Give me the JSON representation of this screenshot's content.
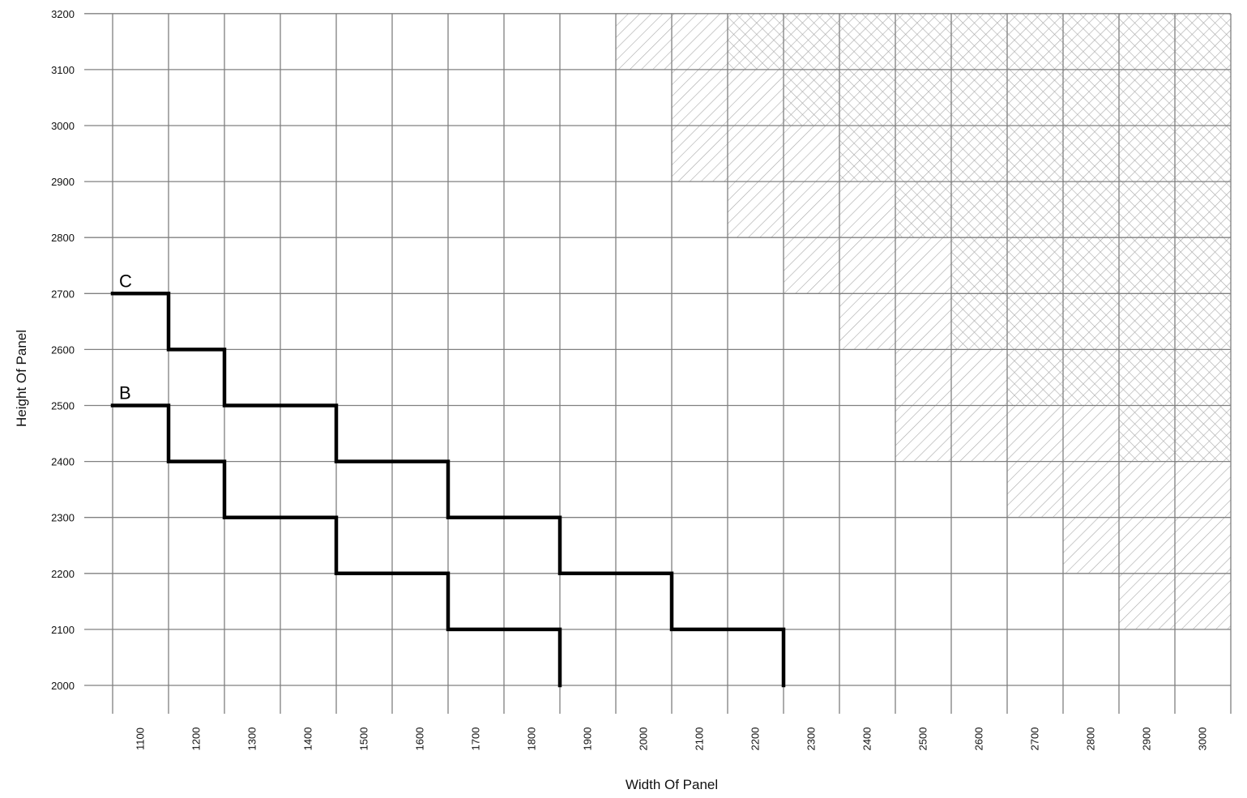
{
  "chart_data": {
    "type": "line",
    "title": "",
    "xlabel": "Width Of Panel",
    "ylabel": "Height Of Panel",
    "xlim": [
      1000,
      3000
    ],
    "ylim": [
      2000,
      3200
    ],
    "x_ticks": [
      1100,
      1200,
      1300,
      1400,
      1500,
      1600,
      1700,
      1800,
      1900,
      2000,
      2100,
      2200,
      2300,
      2400,
      2500,
      2600,
      2700,
      2800,
      2900,
      3000
    ],
    "y_ticks": [
      2000,
      2100,
      2200,
      2300,
      2400,
      2500,
      2600,
      2700,
      2800,
      2900,
      3000,
      3100,
      3200
    ],
    "grid": true,
    "series": [
      {
        "name": "C",
        "step": true,
        "x": [
          1000,
          1100,
          1100,
          1200,
          1200,
          1400,
          1400,
          1600,
          1600,
          1800,
          1800,
          2000,
          2000,
          2200,
          2200
        ],
        "y": [
          2700,
          2700,
          2600,
          2600,
          2500,
          2500,
          2400,
          2400,
          2300,
          2300,
          2200,
          2200,
          2100,
          2100,
          2000
        ]
      },
      {
        "name": "B",
        "step": true,
        "x": [
          1000,
          1100,
          1100,
          1200,
          1200,
          1400,
          1400,
          1600,
          1600,
          1800,
          1800
        ],
        "y": [
          2500,
          2500,
          2400,
          2400,
          2300,
          2300,
          2200,
          2200,
          2100,
          2100,
          2000
        ]
      }
    ],
    "hatched_regions": {
      "single_hatch": {
        "pattern": "diagonal",
        "color": "#a9a9a9",
        "columns": [
          {
            "x0": 1900,
            "x1": 2000,
            "y_min": 3100
          },
          {
            "x0": 2000,
            "x1": 2100,
            "y_min": 2900
          },
          {
            "x0": 2100,
            "x1": 2200,
            "y_min": 2800
          },
          {
            "x0": 2200,
            "x1": 2300,
            "y_min": 2700
          },
          {
            "x0": 2300,
            "x1": 2400,
            "y_min": 2600
          },
          {
            "x0": 2400,
            "x1": 2500,
            "y_min": 2400
          },
          {
            "x0": 2500,
            "x1": 2600,
            "y_min": 2400
          },
          {
            "x0": 2600,
            "x1": 2700,
            "y_min": 2300
          },
          {
            "x0": 2700,
            "x1": 2800,
            "y_min": 2200
          },
          {
            "x0": 2800,
            "x1": 2900,
            "y_min": 2100
          },
          {
            "x0": 2900,
            "x1": 3000,
            "y_min": 2100
          }
        ]
      },
      "cross_hatch": {
        "pattern": "crosshatch",
        "color": "#a9a9a9",
        "columns": [
          {
            "x0": 2100,
            "x1": 2200,
            "y_min": 3100
          },
          {
            "x0": 2200,
            "x1": 2300,
            "y_min": 3000
          },
          {
            "x0": 2300,
            "x1": 2400,
            "y_min": 2900
          },
          {
            "x0": 2400,
            "x1": 2500,
            "y_min": 2800
          },
          {
            "x0": 2500,
            "x1": 2600,
            "y_min": 2600
          },
          {
            "x0": 2600,
            "x1": 2700,
            "y_min": 2500
          },
          {
            "x0": 2700,
            "x1": 2800,
            "y_min": 2500
          },
          {
            "x0": 2800,
            "x1": 2900,
            "y_min": 2400
          },
          {
            "x0": 2900,
            "x1": 3000,
            "y_min": 2400
          }
        ]
      }
    },
    "colors": {
      "grid": "#808080",
      "series_line": "#000000",
      "hatch": "#a9a9a9"
    }
  }
}
